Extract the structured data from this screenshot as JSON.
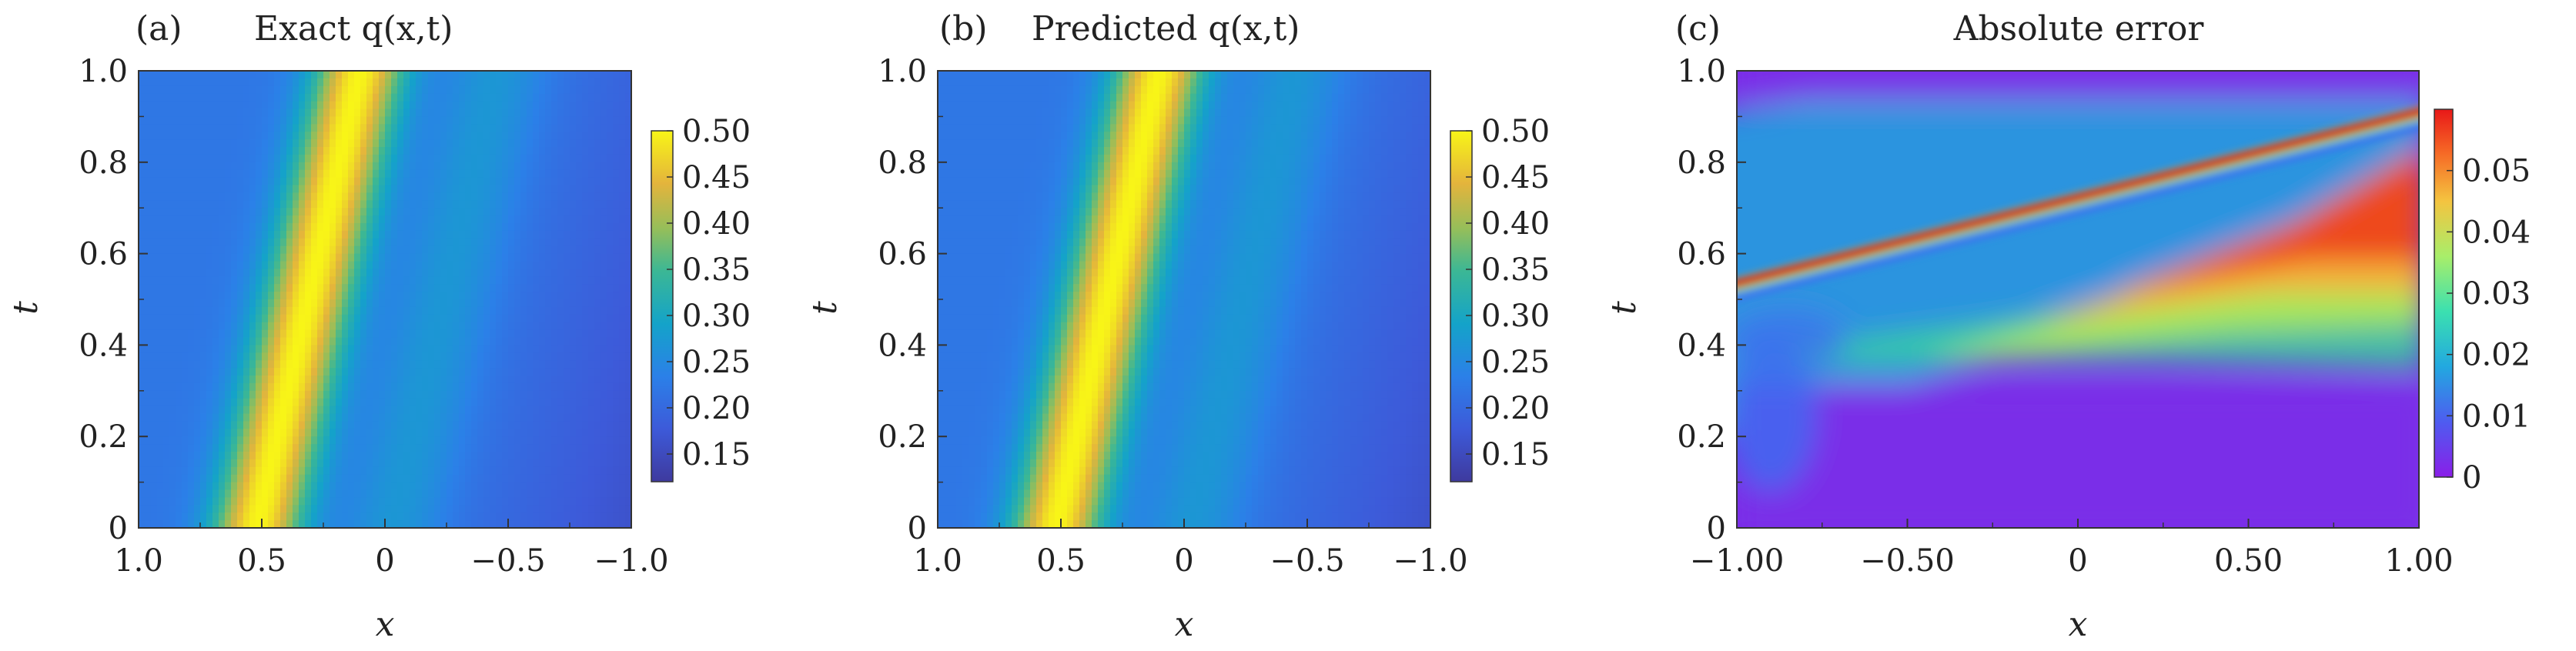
{
  "chart_data": [
    {
      "type": "heatmap",
      "panel": "(a)",
      "title": "Exact q(x,t)",
      "xlabel": "x",
      "ylabel": "t",
      "xlim": [
        1.0,
        -1.0
      ],
      "ylim": [
        0,
        1.0
      ],
      "xticks": [
        "1.0",
        "0.5",
        "0",
        "−0.5",
        "−1.0"
      ],
      "yticks": [
        "0",
        "0.2",
        "0.4",
        "0.6",
        "0.8",
        "1.0"
      ],
      "colormap": "parula",
      "colorbar": {
        "range": [
          0.12,
          0.5
        ],
        "ticks": [
          "0.15",
          "0.20",
          "0.25",
          "0.30",
          "0.35",
          "0.40",
          "0.45",
          "0.50"
        ]
      }
    },
    {
      "type": "heatmap",
      "panel": "(b)",
      "title": "Predicted q(x,t)",
      "xlabel": "x",
      "ylabel": "t",
      "xlim": [
        1.0,
        -1.0
      ],
      "ylim": [
        0,
        1.0
      ],
      "xticks": [
        "1.0",
        "0.5",
        "0",
        "−0.5",
        "−1.0"
      ],
      "yticks": [
        "0",
        "0.2",
        "0.4",
        "0.6",
        "0.8",
        "1.0"
      ],
      "colormap": "parula",
      "colorbar": {
        "range": [
          0.12,
          0.5
        ],
        "ticks": [
          "0.15",
          "0.20",
          "0.25",
          "0.30",
          "0.35",
          "0.40",
          "0.45",
          "0.50"
        ]
      }
    },
    {
      "type": "heatmap",
      "panel": "(c)",
      "title": "Absolute error",
      "xlabel": "x",
      "ylabel": "t",
      "xlim": [
        -1.0,
        1.0
      ],
      "ylim": [
        0,
        1.0
      ],
      "xticks": [
        "−1.00",
        "−0.50",
        "0",
        "0.50",
        "1.00"
      ],
      "yticks": [
        "0",
        "0.2",
        "0.4",
        "0.6",
        "0.8",
        "1.0"
      ],
      "colormap": "rainbow",
      "colorbar": {
        "range": [
          0,
          0.06
        ],
        "ticks": [
          "0",
          "0.01",
          "0.02",
          "0.03",
          "0.04",
          "0.05"
        ]
      }
    }
  ]
}
